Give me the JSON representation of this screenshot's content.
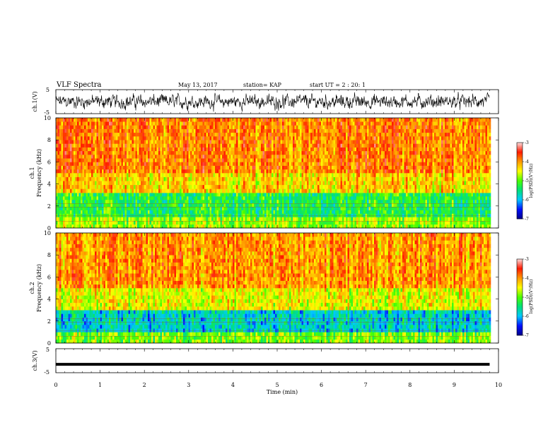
{
  "header": {
    "title": "VLF Spectra",
    "date": "May 13, 2017",
    "station": "station= KAP",
    "start_ut": "start  UT =   2 : 20: 1"
  },
  "colors": {
    "axis": "#000000",
    "colormap": [
      "#00008c",
      "#0010ff",
      "#00c8ff",
      "#00e07a",
      "#49ff00",
      "#ffff00",
      "#ff9900",
      "#ff1a00",
      "#ffdddd"
    ],
    "trace": "#000000"
  },
  "chart_data": [
    {
      "type": "line",
      "name": "ch.1 time series",
      "ylabel": "ch.1(V)",
      "ylim": [
        -5,
        5
      ],
      "yticks": [
        "5",
        "-5"
      ],
      "x_range_min": [
        0,
        9.8
      ],
      "description_values": "noisy waveform fluctuating roughly between -3 and 3 V"
    },
    {
      "type": "heatmap",
      "name": "ch.1 spectrogram",
      "ylabel_line1": "ch.1",
      "ylabel_line2": "Frequency (kHz)",
      "ylim": [
        0,
        10
      ],
      "yticks": [
        "0",
        "2",
        "4",
        "6",
        "8",
        "10"
      ],
      "x_range_min": [
        0,
        9.8
      ],
      "colorbar": {
        "label": "log(PSD)(V²/Hz)",
        "range": [
          -7,
          -3
        ],
        "ticks": [
          "-3",
          "-4",
          "-5",
          "-6",
          "-7"
        ]
      },
      "bands": [
        {
          "f_low": 0,
          "f_high": 1.0,
          "log_psd": -4.8
        },
        {
          "f_low": 1.0,
          "f_high": 3.2,
          "log_psd": -5.3
        },
        {
          "f_low": 3.2,
          "f_high": 5.0,
          "log_psd": -4.3
        },
        {
          "f_low": 5.0,
          "f_high": 10,
          "log_psd": -3.9
        }
      ]
    },
    {
      "type": "heatmap",
      "name": "ch.2 spectrogram",
      "ylabel_line1": "ch.2",
      "ylabel_line2": "Frequency (kHz)",
      "ylim": [
        0,
        10
      ],
      "yticks": [
        "0",
        "2",
        "4",
        "6",
        "8",
        "10"
      ],
      "x_range_min": [
        0,
        9.8
      ],
      "colorbar": {
        "label": "log(PSD)(V²/Hz)",
        "range": [
          -7,
          -3
        ],
        "ticks": [
          "-3",
          "-4",
          "-5",
          "-6",
          "-7"
        ]
      },
      "bands": [
        {
          "f_low": 0,
          "f_high": 1.0,
          "log_psd": -4.9
        },
        {
          "f_low": 1.0,
          "f_high": 3.0,
          "log_psd": -5.8
        },
        {
          "f_low": 3.0,
          "f_high": 5.0,
          "log_psd": -4.5
        },
        {
          "f_low": 5.0,
          "f_high": 10,
          "log_psd": -4.0
        }
      ]
    },
    {
      "type": "line",
      "name": "ch.3 time series",
      "ylabel": "ch.3(V)",
      "ylim": [
        -5,
        5
      ],
      "yticks": [
        "5",
        "-5"
      ],
      "x_range_min": [
        0,
        9.8
      ],
      "constant_value": -1.5
    }
  ],
  "xaxis": {
    "label": "Time (min)",
    "ticks": [
      "0",
      "1",
      "2",
      "3",
      "4",
      "5",
      "6",
      "7",
      "8",
      "9",
      "10"
    ],
    "range": [
      0,
      10
    ]
  }
}
